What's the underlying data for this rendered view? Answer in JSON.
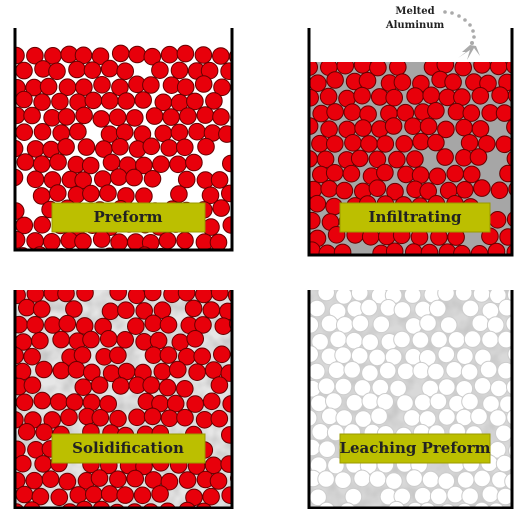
{
  "annotation": {
    "lines": [
      "Melted",
      "Aluminum"
    ]
  },
  "panels": [
    {
      "label": "Preform"
    },
    {
      "label": "Infiltrating"
    },
    {
      "label": "Solidification"
    },
    {
      "label": "Leaching Preform"
    }
  ]
}
